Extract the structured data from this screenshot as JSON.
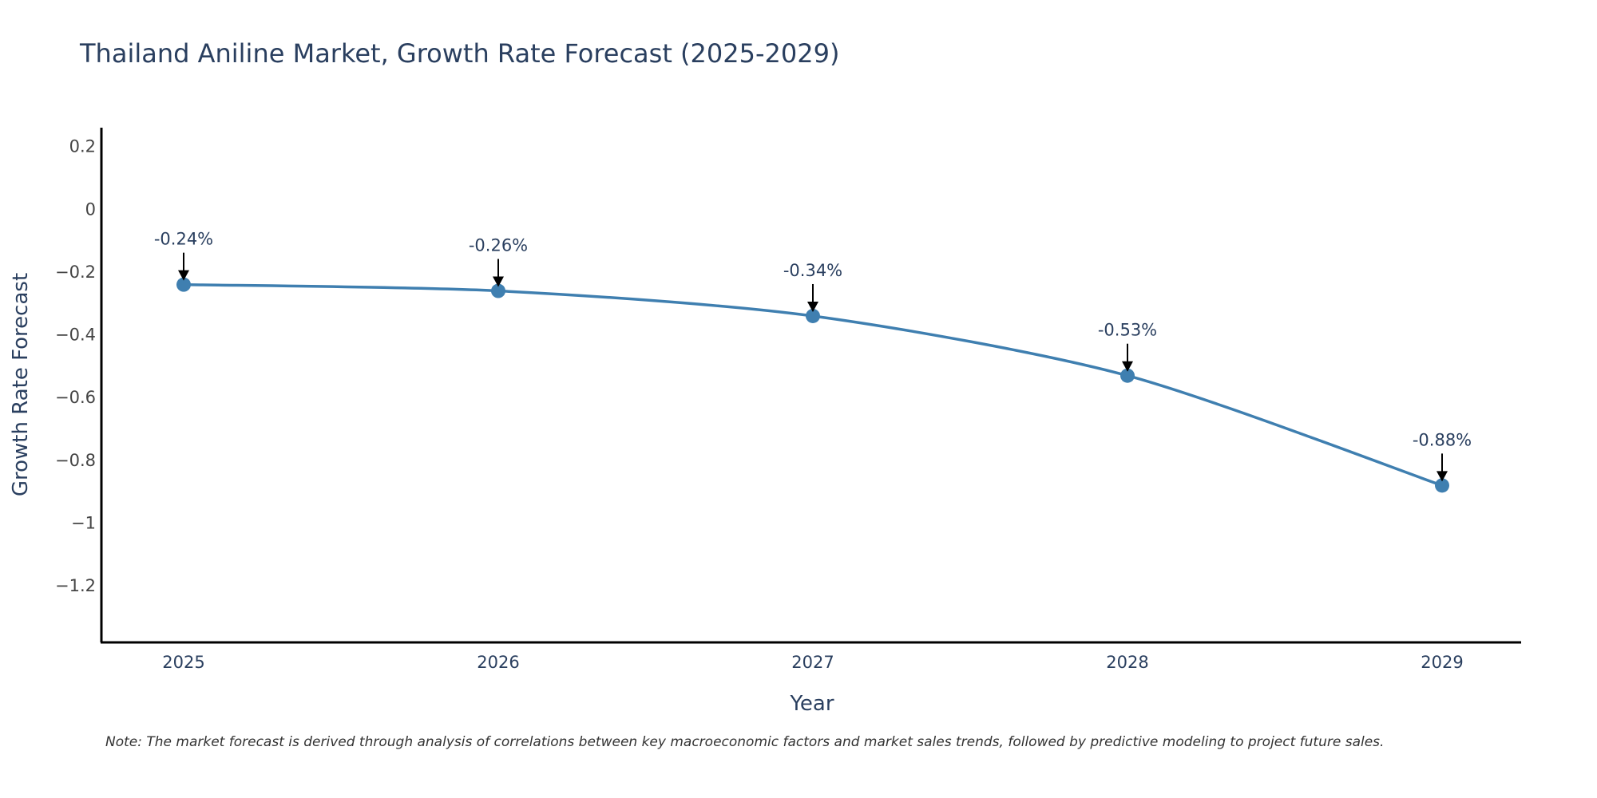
{
  "chart_data": {
    "type": "line",
    "title": "Thailand Aniline Market, Growth Rate Forecast (2025-2029)",
    "xlabel": "Year",
    "ylabel": "Growth Rate Forecast",
    "categories": [
      "2025",
      "2026",
      "2027",
      "2028",
      "2029"
    ],
    "values": [
      -0.24,
      -0.26,
      -0.34,
      -0.53,
      -0.88
    ],
    "data_labels": [
      "-0.24%",
      "-0.26%",
      "-0.34%",
      "-0.53%",
      "-0.88%"
    ],
    "yticks": [
      0.2,
      0,
      -0.2,
      -0.4,
      -0.6,
      -0.8,
      -1,
      -1.2
    ],
    "ytick_labels": [
      "0.2",
      "0",
      "−0.2",
      "−0.4",
      "−0.6",
      "−0.8",
      "−1",
      "−1.2"
    ],
    "ylim": [
      -1.38,
      0.26
    ],
    "grid": false,
    "legend": "none",
    "line_color": "#3f7fb0",
    "marker_color": "#3f7fb0"
  },
  "note": "Note: The market forecast is derived through analysis of correlations between key macroeconomic factors and market sales trends, followed by predictive modeling to project future sales."
}
